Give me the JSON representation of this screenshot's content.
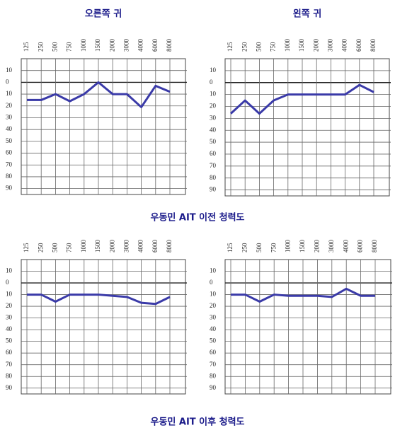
{
  "chart_data": [
    {
      "type": "line",
      "title": "오른쪽 귀",
      "categories": [
        "125",
        "250",
        "500",
        "750",
        "1000",
        "1500",
        "2000",
        "3000",
        "4000",
        "6000",
        "8000"
      ],
      "values": [
        15,
        15,
        10,
        16,
        10,
        0,
        10,
        10,
        21,
        3,
        8
      ],
      "color": "#3a3aa8",
      "ylim": [
        -20,
        95
      ],
      "y_inverted": true,
      "grid": true,
      "yticks": [
        {
          "value": -10,
          "label": "10"
        },
        0,
        10,
        20,
        30,
        40,
        50,
        60,
        70,
        80,
        90
      ]
    },
    {
      "type": "line",
      "title": "왼쪽 귀",
      "categories": [
        "125",
        "250",
        "500",
        "750",
        "1000",
        "1500",
        "2000",
        "3000",
        "4000",
        "6000",
        "8000"
      ],
      "values": [
        26,
        15,
        26,
        15,
        10,
        10,
        10,
        10,
        10,
        2,
        8
      ],
      "color": "#3a3aa8",
      "ylim": [
        -20,
        95
      ],
      "y_inverted": true,
      "grid": true,
      "yticks": [
        {
          "value": -10,
          "label": "10"
        },
        0,
        10,
        20,
        30,
        40,
        50,
        60,
        70,
        80,
        90
      ]
    },
    {
      "type": "line",
      "categories": [
        "125",
        "250",
        "500",
        "750",
        "1000",
        "1500",
        "2000",
        "3000",
        "4000",
        "6000",
        "8000"
      ],
      "values": [
        10,
        10,
        16,
        10,
        10,
        10,
        11,
        12,
        17,
        18,
        12
      ],
      "color": "#3a3aa8",
      "ylim": [
        -20,
        95
      ],
      "y_inverted": true,
      "grid": true,
      "yticks": [
        {
          "value": -10,
          "label": "10"
        },
        0,
        10,
        20,
        30,
        40,
        50,
        60,
        70,
        80,
        90
      ]
    },
    {
      "type": "line",
      "categories": [
        "125",
        "250",
        "500",
        "750",
        "1000",
        "1500",
        "2000",
        "3000",
        "4000",
        "6000",
        "8000"
      ],
      "values": [
        10,
        10,
        16,
        10,
        11,
        11,
        11,
        12,
        5,
        11,
        11
      ],
      "color": "#3a3aa8",
      "ylim": [
        -20,
        95
      ],
      "y_inverted": true,
      "grid": true,
      "yticks": [
        {
          "value": -10,
          "label": "10"
        },
        0,
        10,
        20,
        30,
        40,
        50,
        60,
        70,
        80,
        90
      ]
    }
  ],
  "captions": [
    "우동민 AIT 이전 청력도",
    "우동민 AIT 이후 청력도"
  ]
}
